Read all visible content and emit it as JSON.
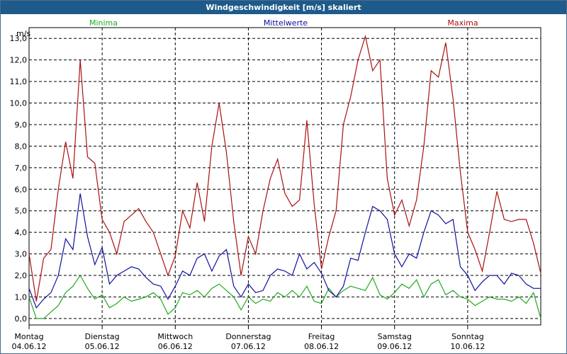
{
  "window": {
    "title": "Windgeschwindigkeit [m/s] skaliert"
  },
  "chart_data": {
    "type": "line",
    "title": "Windgeschwindigkeit [m/s] skaliert",
    "ylabel": "m/s",
    "ylim": [
      -0.3,
      13.5
    ],
    "yticks": [
      0,
      1,
      2,
      3,
      4,
      5,
      6,
      7,
      8,
      9,
      10,
      11,
      12,
      13
    ],
    "ytick_labels": [
      "0,0",
      "1,0",
      "2,0",
      "3,0",
      "4,0",
      "5,0",
      "6,0",
      "7,0",
      "8,0",
      "9,0",
      "10,0",
      "11,0",
      "12,0",
      "13,0"
    ],
    "xlim": [
      0,
      7
    ],
    "x_ticks": [
      {
        "x": 0,
        "day": "Montag",
        "date": "04.06.12"
      },
      {
        "x": 1,
        "day": "Dienstag",
        "date": "05.06.12"
      },
      {
        "x": 2,
        "day": "Mittwoch",
        "date": "06.06.12"
      },
      {
        "x": 3,
        "day": "Donnerstag",
        "date": "07.06.12"
      },
      {
        "x": 4,
        "day": "Freitag",
        "date": "08.06.12"
      },
      {
        "x": 5,
        "day": "Samstag",
        "date": "09.06.12"
      },
      {
        "x": 6,
        "day": "Sonntag",
        "date": "10.06.12"
      }
    ],
    "legend": [
      "Minima",
      "Mittelwerte",
      "Maxima"
    ],
    "series": [
      {
        "name": "Minima",
        "color": "#22aa22",
        "x": [
          0,
          0.1,
          0.2,
          0.3,
          0.4,
          0.5,
          0.6,
          0.7,
          0.8,
          0.9,
          1.0,
          1.1,
          1.2,
          1.3,
          1.4,
          1.5,
          1.6,
          1.7,
          1.8,
          1.9,
          2.0,
          2.1,
          2.2,
          2.3,
          2.4,
          2.5,
          2.6,
          2.7,
          2.8,
          2.9,
          3.0,
          3.1,
          3.2,
          3.3,
          3.4,
          3.5,
          3.6,
          3.7,
          3.8,
          3.9,
          4.0,
          4.1,
          4.2,
          4.3,
          4.4,
          4.5,
          4.6,
          4.7,
          4.8,
          4.9,
          5.0,
          5.1,
          5.2,
          5.3,
          5.4,
          5.5,
          5.6,
          5.7,
          5.8,
          5.9,
          6.0,
          6.1,
          6.2,
          6.3,
          6.4,
          6.5,
          6.6,
          6.7,
          6.8,
          6.9,
          7.0
        ],
        "values": [
          1.0,
          0.0,
          0.0,
          0.3,
          0.6,
          1.2,
          1.5,
          2.0,
          1.4,
          0.9,
          1.1,
          0.5,
          0.7,
          1.0,
          0.8,
          0.9,
          1.0,
          1.2,
          0.9,
          0.2,
          0.5,
          1.2,
          1.1,
          1.3,
          1.0,
          1.4,
          1.6,
          1.3,
          1.0,
          0.4,
          1.0,
          0.7,
          0.9,
          0.8,
          1.2,
          1.0,
          1.3,
          1.0,
          1.5,
          0.8,
          0.7,
          1.4,
          1.0,
          1.3,
          1.5,
          1.4,
          1.3,
          1.9,
          1.1,
          0.9,
          1.2,
          1.6,
          1.4,
          1.8,
          1.0,
          1.6,
          1.8,
          1.1,
          1.3,
          1.0,
          0.9,
          0.6,
          0.8,
          1.0,
          0.9,
          0.9,
          0.8,
          1.0,
          0.7,
          1.2,
          0.0
        ]
      },
      {
        "name": "Mittelwerte",
        "color": "#1010a0",
        "x": [
          0,
          0.1,
          0.2,
          0.3,
          0.4,
          0.5,
          0.6,
          0.7,
          0.8,
          0.9,
          1.0,
          1.1,
          1.2,
          1.3,
          1.4,
          1.5,
          1.6,
          1.7,
          1.8,
          1.9,
          2.0,
          2.1,
          2.2,
          2.3,
          2.4,
          2.5,
          2.6,
          2.7,
          2.8,
          2.9,
          3.0,
          3.1,
          3.2,
          3.3,
          3.4,
          3.5,
          3.6,
          3.7,
          3.8,
          3.9,
          4.0,
          4.1,
          4.2,
          4.3,
          4.4,
          4.5,
          4.6,
          4.7,
          4.8,
          4.9,
          5.0,
          5.1,
          5.2,
          5.3,
          5.4,
          5.5,
          5.6,
          5.7,
          5.8,
          5.9,
          6.0,
          6.1,
          6.2,
          6.3,
          6.4,
          6.5,
          6.6,
          6.7,
          6.8,
          6.9,
          7.0
        ],
        "values": [
          1.4,
          0.5,
          0.9,
          1.2,
          2.0,
          3.7,
          3.2,
          5.8,
          3.8,
          2.5,
          3.3,
          1.6,
          2.0,
          2.2,
          2.4,
          2.3,
          1.9,
          1.6,
          1.5,
          0.9,
          1.5,
          2.2,
          2.0,
          2.8,
          3.0,
          2.2,
          2.9,
          3.2,
          1.5,
          1.0,
          1.6,
          1.2,
          1.3,
          2.0,
          2.3,
          2.2,
          2.0,
          3.0,
          2.3,
          2.6,
          2.1,
          1.3,
          1.0,
          1.5,
          2.8,
          2.7,
          4.0,
          5.2,
          5.0,
          4.6,
          3.0,
          2.4,
          3.0,
          2.8,
          4.0,
          5.0,
          4.8,
          4.4,
          4.6,
          2.4,
          2.0,
          1.3,
          1.7,
          2.0,
          2.0,
          1.6,
          2.1,
          2.0,
          1.6,
          1.4,
          1.4
        ]
      },
      {
        "name": "Maxima",
        "color": "#aa1010",
        "x": [
          0,
          0.1,
          0.2,
          0.3,
          0.4,
          0.5,
          0.6,
          0.7,
          0.8,
          0.9,
          1.0,
          1.1,
          1.2,
          1.3,
          1.4,
          1.5,
          1.6,
          1.7,
          1.8,
          1.9,
          2.0,
          2.1,
          2.2,
          2.3,
          2.4,
          2.5,
          2.6,
          2.7,
          2.8,
          2.9,
          3.0,
          3.1,
          3.2,
          3.3,
          3.4,
          3.5,
          3.6,
          3.7,
          3.8,
          3.9,
          4.0,
          4.1,
          4.2,
          4.3,
          4.4,
          4.5,
          4.6,
          4.7,
          4.8,
          4.9,
          5.0,
          5.1,
          5.2,
          5.3,
          5.4,
          5.5,
          5.6,
          5.7,
          5.8,
          5.9,
          6.0,
          6.1,
          6.2,
          6.3,
          6.4,
          6.5,
          6.6,
          6.7,
          6.8,
          6.9,
          7.0
        ],
        "values": [
          3.0,
          0.8,
          2.8,
          3.2,
          6.0,
          8.2,
          6.5,
          12.0,
          7.5,
          7.2,
          4.6,
          4.0,
          3.0,
          4.5,
          4.8,
          5.1,
          4.5,
          4.0,
          3.0,
          2.0,
          2.9,
          5.0,
          4.2,
          6.3,
          4.5,
          8.0,
          10.0,
          7.7,
          4.5,
          2.0,
          3.8,
          3.0,
          5.0,
          6.5,
          7.4,
          5.8,
          5.2,
          5.5,
          9.2,
          5.3,
          2.3,
          3.8,
          5.0,
          9.0,
          10.3,
          12.0,
          13.1,
          11.5,
          12.0,
          6.5,
          4.8,
          5.5,
          4.3,
          5.5,
          8.0,
          11.5,
          11.2,
          12.8,
          10.2,
          6.8,
          4.0,
          3.2,
          2.2,
          4.0,
          5.9,
          4.6,
          4.5,
          4.6,
          4.6,
          3.5,
          2.1
        ]
      }
    ]
  }
}
